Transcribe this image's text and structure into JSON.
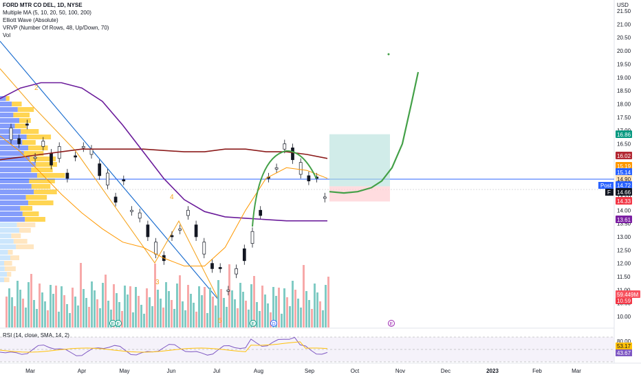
{
  "header": {
    "title": "FORD MTR CO DEL, 1D, NYSE",
    "indicators": [
      "Multiple MA (5, 10, 20, 50, 100, 200)",
      "Elliott Wave (Absolute)",
      "VRVP (Number Of Rows, 48, Up/Down, 70)",
      "Vol"
    ]
  },
  "rsi": {
    "label": "RSI (14, close, SMA, 14, 2)"
  },
  "chart_data": {
    "type": "candlestick",
    "y_axis": {
      "currency": "USD",
      "range": [
        9.8,
        21.6
      ],
      "ticks": [
        "21.50",
        "21.00",
        "20.50",
        "20.00",
        "19.50",
        "19.00",
        "18.50",
        "18.00",
        "17.50",
        "17.00",
        "16.50",
        "16.00",
        "15.50",
        "15.00",
        "14.50",
        "14.00",
        "13.50",
        "13.00",
        "12.50",
        "12.00",
        "11.50",
        "11.00",
        "10.50",
        "10.00"
      ]
    },
    "x_axis": {
      "labels": [
        "Mar",
        "Apr",
        "May",
        "Jun",
        "Jul",
        "Aug",
        "Sep",
        "Oct",
        "Nov",
        "Dec",
        "2023",
        "Feb",
        "Mar"
      ]
    },
    "price_badges": [
      {
        "text": "16.86",
        "color": "#089981"
      },
      {
        "text": "16.02",
        "color": "#b22833"
      },
      {
        "text": "15.19",
        "color": "#ff9800"
      },
      {
        "text": "15.14",
        "color": "#2962ff"
      },
      {
        "text": "14.90",
        "color": "#ffe0b2"
      },
      {
        "text": "14.72",
        "color": "#2962ff"
      },
      {
        "text": "14.66",
        "color": "#131722"
      },
      {
        "text": "14.33",
        "color": "#f23645"
      },
      {
        "text": "13.61",
        "color": "#7b1fa2"
      },
      {
        "text": "10.59",
        "color": "#f23645"
      },
      {
        "text": "59.449M",
        "color": "#f7525f"
      }
    ],
    "post_label": "Post",
    "f_label": "F",
    "wave_labels": [
      "2",
      "4",
      "3",
      "5"
    ],
    "event_markers": [
      "E",
      "E",
      "E",
      "D",
      "E"
    ],
    "rsi_ticks": [
      "80.00",
      "60.00"
    ],
    "rsi_badges": [
      {
        "text": "53.17",
        "color": "#ffc107"
      },
      {
        "text": "43.67",
        "color": "#7e57c2"
      }
    ],
    "series": [
      {
        "name": "MA 200",
        "color": "#8b1a1a",
        "values": [
          15.9,
          16.0,
          16.1,
          16.2,
          16.3,
          16.3,
          16.3,
          16.3,
          16.25,
          16.2,
          16.2,
          16.3,
          16.3,
          16.2,
          16.2,
          16.1,
          15.95
        ]
      },
      {
        "name": "MA 100",
        "color": "#6a1b9a",
        "values": [
          18.2,
          18.6,
          18.8,
          18.8,
          18.6,
          18.1,
          17.2,
          16.2,
          15.2,
          14.4,
          13.95,
          13.75,
          13.7,
          13.65,
          13.6,
          13.6,
          13.6
        ]
      },
      {
        "name": "MA 20",
        "color": "#ff9800",
        "values": [
          16.8,
          16.2,
          15.4,
          14.6,
          13.9,
          13.3,
          12.8,
          12.6,
          12.2,
          11.9,
          11.9,
          12.6,
          14.0,
          15.2,
          15.6,
          15.5,
          15.2
        ]
      }
    ],
    "projection": {
      "name": "projection",
      "color": "#43a047",
      "values": [
        14.7,
        14.65,
        14.7,
        14.85,
        15.1,
        15.6,
        16.5,
        18.0,
        19.2
      ]
    },
    "trade_box": {
      "entry": 14.9,
      "target": 16.86,
      "stop": 14.33
    }
  }
}
